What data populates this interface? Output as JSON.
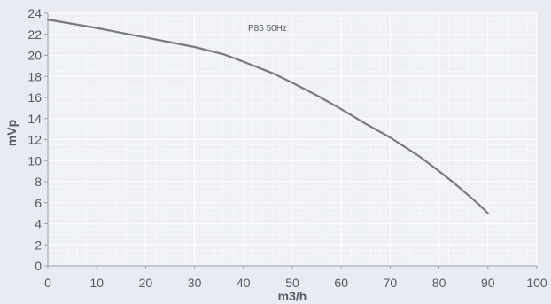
{
  "chart_data": {
    "type": "line",
    "title": "",
    "annotation": "P85 50Hz",
    "xlabel": "m3/h",
    "ylabel": "mVp",
    "xlim": [
      0,
      100
    ],
    "ylim": [
      0,
      24
    ],
    "x_ticks": [
      0,
      10,
      20,
      30,
      40,
      50,
      60,
      70,
      80,
      90,
      100
    ],
    "y_ticks": [
      0,
      2,
      4,
      6,
      8,
      10,
      12,
      14,
      16,
      18,
      20,
      22,
      24
    ],
    "grid": true,
    "colors": {
      "background": "#e8ecf2",
      "plot_area": "#eef1f6",
      "grid": "#ffffff",
      "line": "#7a7a7a",
      "text": "#555a60"
    },
    "series": [
      {
        "x": [
          0,
          10,
          20,
          30,
          36,
          40,
          46,
          50,
          55,
          60,
          65,
          70,
          73,
          76,
          80,
          83,
          86,
          88,
          90
        ],
        "y": [
          23.4,
          22.6,
          21.7,
          20.8,
          20.1,
          19.4,
          18.3,
          17.4,
          16.2,
          14.9,
          13.5,
          12.2,
          11.3,
          10.4,
          9.0,
          7.9,
          6.7,
          5.9,
          5.0
        ]
      }
    ]
  }
}
